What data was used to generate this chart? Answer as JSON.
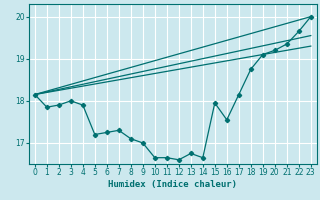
{
  "title": "",
  "xlabel": "Humidex (Indice chaleur)",
  "ylabel": "",
  "bg_color": "#cce8ee",
  "grid_color": "#ffffff",
  "line_color": "#007070",
  "xlim": [
    -0.5,
    23.5
  ],
  "ylim": [
    16.5,
    20.3
  ],
  "xticks": [
    0,
    1,
    2,
    3,
    4,
    5,
    6,
    7,
    8,
    9,
    10,
    11,
    12,
    13,
    14,
    15,
    16,
    17,
    18,
    19,
    20,
    21,
    22,
    23
  ],
  "yticks": [
    17,
    18,
    19,
    20
  ],
  "line1_x": [
    0,
    1,
    2,
    3,
    4,
    5,
    6,
    7,
    8,
    9,
    10,
    11,
    12,
    13,
    14,
    15,
    16,
    17,
    18,
    19,
    20,
    21,
    22,
    23
  ],
  "line1_y": [
    18.15,
    17.85,
    17.9,
    18.0,
    17.9,
    17.2,
    17.25,
    17.3,
    17.1,
    17.0,
    16.65,
    16.65,
    16.6,
    16.75,
    16.65,
    17.95,
    17.55,
    18.15,
    18.75,
    19.1,
    19.2,
    19.35,
    19.65,
    20.0
  ],
  "line2_x": [
    0,
    23
  ],
  "line2_y": [
    18.15,
    20.0
  ],
  "line3_x": [
    0,
    23
  ],
  "line3_y": [
    18.15,
    19.55
  ],
  "line4_x": [
    0,
    23
  ],
  "line4_y": [
    18.15,
    19.3
  ]
}
